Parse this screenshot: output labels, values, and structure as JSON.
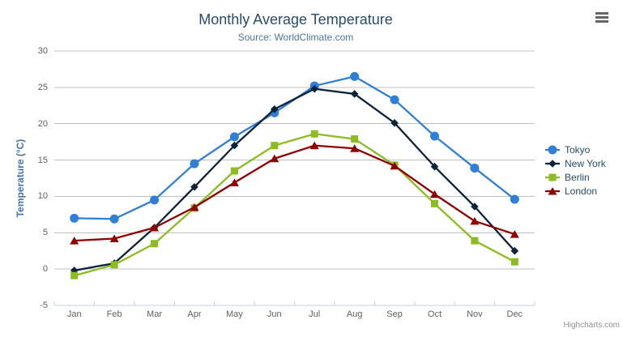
{
  "chart": {
    "credits_label": "Highcharts.com",
    "export_menu_tooltip": "Chart context menu"
  },
  "chart_data": {
    "type": "line",
    "title": "Monthly Average Temperature",
    "subtitle": "Source: WorldClimate.com",
    "xlabel": "",
    "ylabel": "Temperature (°C)",
    "ylim": [
      -5,
      30
    ],
    "y_ticks": [
      -5,
      0,
      5,
      10,
      15,
      20,
      25,
      30
    ],
    "grid": true,
    "legend_position": "right",
    "categories": [
      "Jan",
      "Feb",
      "Mar",
      "Apr",
      "May",
      "Jun",
      "Jul",
      "Aug",
      "Sep",
      "Oct",
      "Nov",
      "Dec"
    ],
    "series": [
      {
        "name": "Tokyo",
        "color": "#2f7ed8",
        "marker": "circle",
        "values": [
          7.0,
          6.9,
          9.5,
          14.5,
          18.2,
          21.5,
          25.2,
          26.5,
          23.3,
          18.3,
          13.9,
          9.6
        ]
      },
      {
        "name": "New York",
        "color": "#0d233a",
        "marker": "diamond",
        "values": [
          -0.2,
          0.8,
          5.7,
          11.3,
          17.0,
          22.0,
          24.8,
          24.1,
          20.1,
          14.1,
          8.6,
          2.5
        ]
      },
      {
        "name": "Berlin",
        "color": "#8bbc21",
        "marker": "square",
        "values": [
          -0.9,
          0.6,
          3.5,
          8.4,
          13.5,
          17.0,
          18.6,
          17.9,
          14.3,
          9.0,
          3.9,
          1.0
        ]
      },
      {
        "name": "London",
        "color": "#910000",
        "marker": "triangle",
        "values": [
          3.9,
          4.2,
          5.7,
          8.5,
          11.9,
          15.2,
          17.0,
          16.6,
          14.2,
          10.3,
          6.6,
          4.8
        ]
      }
    ],
    "style_colors": {
      "grid_line": "#C0C0C0",
      "axis_line": "#C0D0E0",
      "tick_label": "#606060",
      "axis_title": "#4572A7",
      "title": "#274b6d",
      "subtitle": "#4d759e",
      "legend_text": "#274b6d",
      "credits": "#909090",
      "menu_icon": "#666666"
    }
  }
}
